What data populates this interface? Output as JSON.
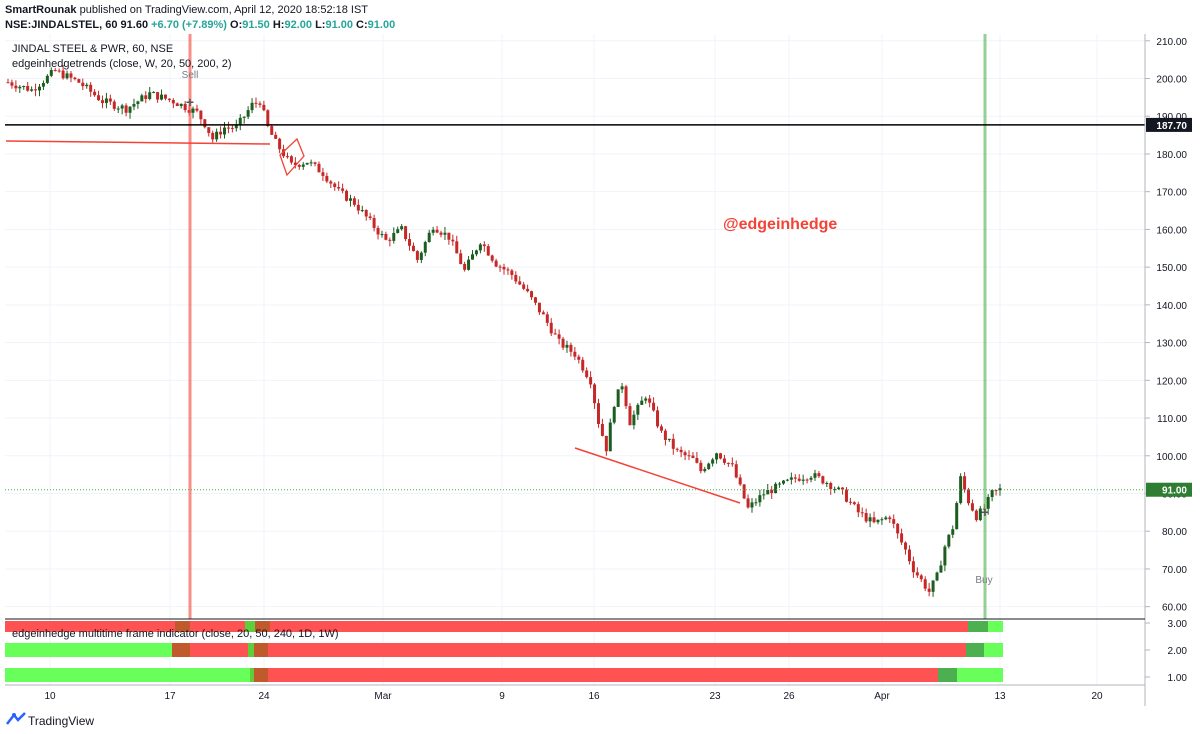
{
  "header": {
    "author": "SmartRounak",
    "published_text": " published on TradingView.com, April 12, 2020 18:52:18 IST",
    "symbol_line": "NSE:JINDALSTEL, 60",
    "last_price": "91.60",
    "change": "+6.70 (+7.89%)",
    "o_label": "O:",
    "o_value": "91.50",
    "h_label": "H:",
    "h_value": "92.00",
    "l_label": "L:",
    "l_value": "91.00",
    "c_label": "C:",
    "c_value": "91.00"
  },
  "chart_data": {
    "type": "candlestick",
    "title": "JINDAL STEEL & PWR, 60, NSE",
    "indicator_main": "edgeinhedgetrends (close, W, 20, 50, 200, 2)",
    "indicator_lower": "edgeinhedge multitime frame indicator (close, 20, 50, 240, 1D, 1W)",
    "watermark": "@edgeinhedge",
    "y_ticks": [
      "210.00",
      "200.00",
      "190.00",
      "180.00",
      "170.00",
      "160.00",
      "150.00",
      "140.00",
      "130.00",
      "120.00",
      "110.00",
      "100.00",
      "90.00",
      "80.00",
      "70.00",
      "60.00"
    ],
    "y_range": [
      57,
      211
    ],
    "x_ticks": [
      "10",
      "17",
      "24",
      "Mar",
      "9",
      "16",
      "23",
      "26",
      "Apr",
      "13",
      "20"
    ],
    "lower_y_ticks": [
      "3.00",
      "2.00",
      "1.00"
    ],
    "horizontal_level": {
      "value": 187.7,
      "label": "187.70"
    },
    "current_price": {
      "value": 91.0,
      "label": "91.00"
    },
    "signals": [
      {
        "label": "Sell",
        "color": "#f44336"
      },
      {
        "label": "Buy",
        "color": "#4caf50"
      }
    ],
    "close_path": [
      [
        0,
        199
      ],
      [
        6,
        197
      ],
      [
        12,
        202
      ],
      [
        18,
        199
      ],
      [
        24,
        194
      ],
      [
        30,
        192
      ],
      [
        36,
        196
      ],
      [
        42,
        194
      ],
      [
        48,
        191
      ],
      [
        50,
        188
      ],
      [
        52,
        184
      ],
      [
        55,
        187
      ],
      [
        58,
        187
      ],
      [
        62,
        193
      ],
      [
        64,
        194
      ],
      [
        66,
        187
      ],
      [
        68,
        183
      ],
      [
        72,
        177
      ],
      [
        76,
        178
      ],
      [
        80,
        175
      ],
      [
        84,
        170
      ],
      [
        88,
        167
      ],
      [
        92,
        162
      ],
      [
        96,
        157
      ],
      [
        100,
        160
      ],
      [
        104,
        152
      ],
      [
        108,
        161
      ],
      [
        112,
        158
      ],
      [
        116,
        149
      ],
      [
        120,
        157
      ],
      [
        124,
        151
      ],
      [
        128,
        148
      ],
      [
        132,
        143
      ],
      [
        136,
        137
      ],
      [
        140,
        130
      ],
      [
        144,
        127
      ],
      [
        148,
        120
      ],
      [
        150,
        109
      ],
      [
        152,
        102
      ],
      [
        154,
        114
      ],
      [
        156,
        119
      ],
      [
        158,
        109
      ],
      [
        162,
        116
      ],
      [
        166,
        106
      ],
      [
        170,
        101
      ],
      [
        174,
        99
      ],
      [
        176,
        96
      ],
      [
        180,
        101
      ],
      [
        184,
        97
      ],
      [
        188,
        86
      ],
      [
        192,
        90
      ],
      [
        196,
        92
      ],
      [
        200,
        94
      ],
      [
        204,
        95
      ],
      [
        208,
        93
      ],
      [
        212,
        90
      ],
      [
        216,
        85
      ],
      [
        220,
        82
      ],
      [
        224,
        84
      ],
      [
        226,
        79
      ],
      [
        228,
        75
      ],
      [
        230,
        70
      ],
      [
        232,
        67
      ],
      [
        234,
        64
      ],
      [
        236,
        68
      ],
      [
        238,
        76
      ],
      [
        240,
        81
      ],
      [
        242,
        94
      ],
      [
        244,
        88
      ],
      [
        246,
        84
      ],
      [
        248,
        86
      ],
      [
        250,
        90
      ],
      [
        252,
        91
      ]
    ]
  }
}
